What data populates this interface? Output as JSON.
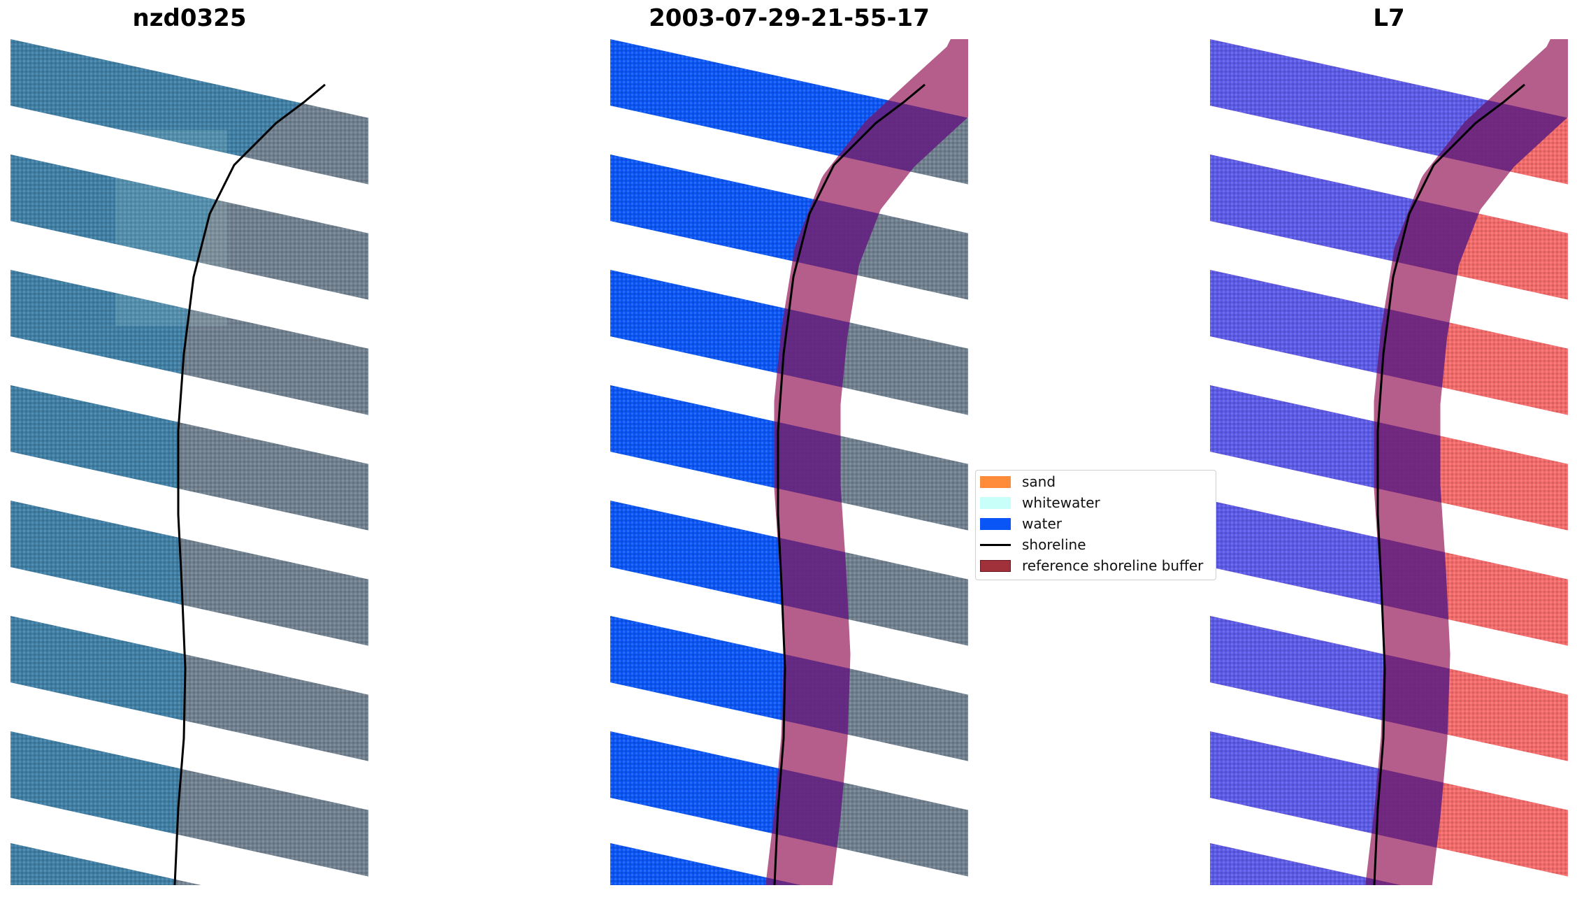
{
  "panels": [
    {
      "title": "nzd0325",
      "variant": "rgb"
    },
    {
      "title": "2003-07-29-21-55-17",
      "variant": "classified"
    },
    {
      "title": "L7",
      "variant": "index"
    }
  ],
  "legend": [
    {
      "label": "sand",
      "color": "#ff8c3a",
      "kind": "patch"
    },
    {
      "label": "whitewater",
      "color": "#c8fff8",
      "kind": "patch"
    },
    {
      "label": "water",
      "color": "#0a55f5",
      "kind": "patch"
    },
    {
      "label": "shoreline",
      "color": "#000000",
      "kind": "line"
    },
    {
      "label": "reference shoreline buffer",
      "color": "#a0303a",
      "kind": "patch"
    }
  ],
  "colors": {
    "sea": "#3f7ea4",
    "land": "#6f7f8e",
    "classified_water": "#0a55f5",
    "index_water": "#5a5ae6",
    "index_land": "#f26a6a",
    "buffer": "#a0306a",
    "buffer_dark": "#3c1890",
    "shoreline": "#000000"
  }
}
